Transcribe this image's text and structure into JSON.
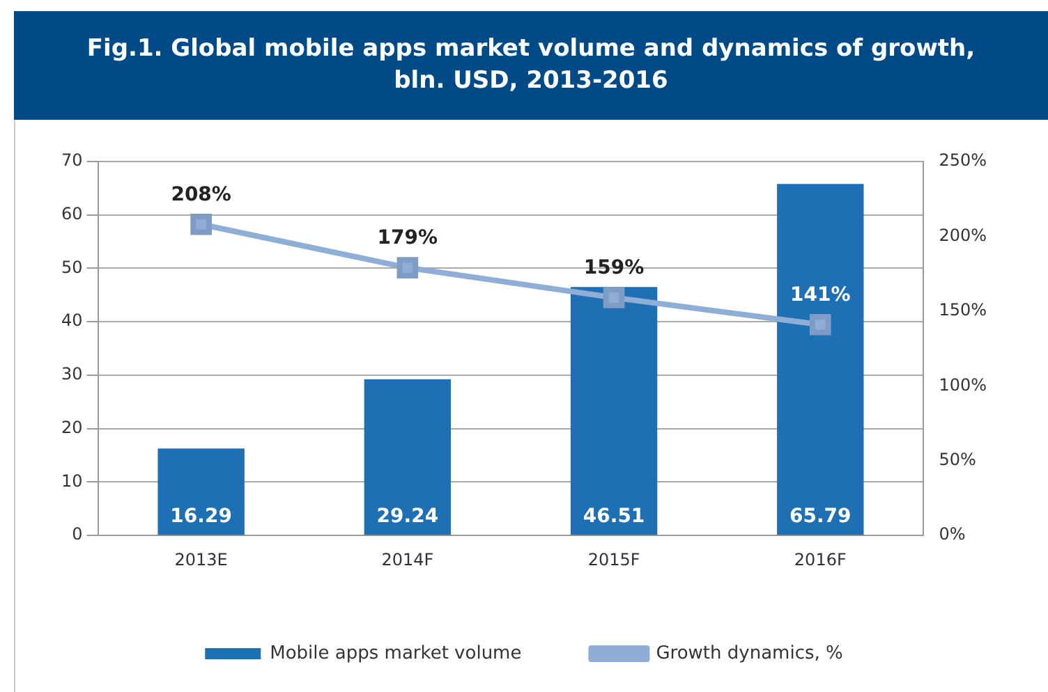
{
  "chart_data": {
    "type": "bar",
    "title": "Fig.1. Global mobile apps market volume and dynamics of growth, bln. USD, 2013-2016",
    "categories": [
      "2013E",
      "2014F",
      "2015F",
      "2016F"
    ],
    "series": [
      {
        "name": "Mobile apps market volume",
        "color": "#1f6fb5",
        "values": [
          16.29,
          29.24,
          46.51,
          65.79
        ],
        "value_labels": [
          "16.29",
          "29.24",
          "46.51",
          "65.79"
        ]
      },
      {
        "name": "Growth dynamics, %",
        "type": "line",
        "axis": "y2",
        "color": "#8eaed6",
        "values": [
          208,
          179,
          159,
          141
        ],
        "value_labels": [
          "208%",
          "179%",
          "159%",
          "141%"
        ]
      }
    ],
    "ylim": [
      0,
      70
    ],
    "yticks": [
      0,
      10,
      20,
      30,
      40,
      50,
      60,
      70
    ],
    "y2lim": [
      0,
      250
    ],
    "y2ticks": [
      {
        "value": 0,
        "label": "0%"
      },
      {
        "value": 50,
        "label": "50%"
      },
      {
        "value": 100,
        "label": "100%"
      },
      {
        "value": 150,
        "label": "150%"
      },
      {
        "value": 200,
        "label": "200%"
      },
      {
        "value": 250,
        "label": "250%"
      }
    ],
    "grid": "y",
    "legend": "bottom",
    "marker": "square",
    "line_style": "solid"
  }
}
